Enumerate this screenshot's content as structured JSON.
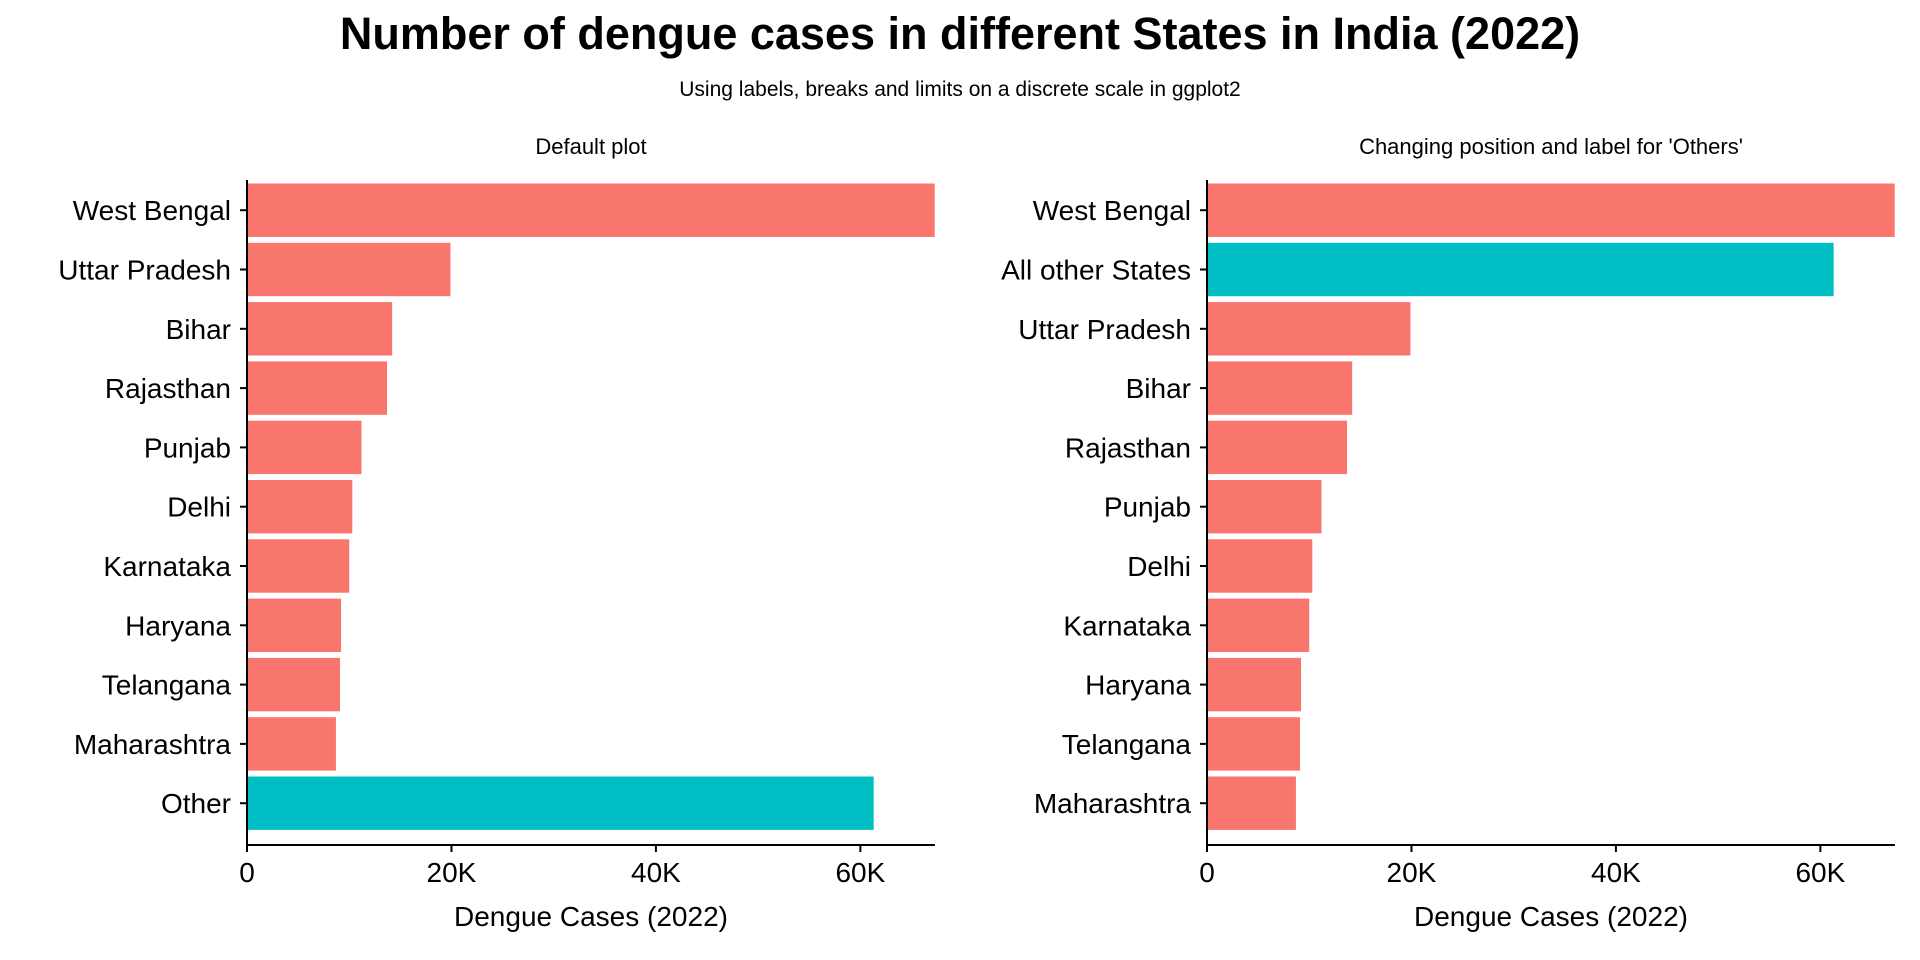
{
  "title": "Number of dengue cases in different States in India (2022)",
  "subtitle": "Using labels, breaks and limits on a discrete scale in ggplot2",
  "colors": {
    "state": "#F8766D",
    "other": "#00BFC4"
  },
  "chart_data": [
    {
      "type": "bar",
      "orientation": "horizontal",
      "title": "Default plot",
      "xlabel": "Dengue Cases (2022)",
      "ylabel": "",
      "xlim": [
        0,
        67300
      ],
      "xticks": [
        0,
        20000,
        40000,
        60000
      ],
      "xtick_labels": [
        "0",
        "20K",
        "40K",
        "60K"
      ],
      "categories": [
        "West Bengal",
        "Uttar Pradesh",
        "Bihar",
        "Rajasthan",
        "Punjab",
        "Delhi",
        "Karnataka",
        "Haryana",
        "Telangana",
        "Maharashtra",
        "Other"
      ],
      "values": [
        67271,
        19900,
        14200,
        13700,
        11200,
        10300,
        10000,
        9200,
        9100,
        8700,
        61300
      ],
      "bar_color_keys": [
        "state",
        "state",
        "state",
        "state",
        "state",
        "state",
        "state",
        "state",
        "state",
        "state",
        "other"
      ],
      "legend": "none",
      "grid": false
    },
    {
      "type": "bar",
      "orientation": "horizontal",
      "title": "Changing position and label for 'Others'",
      "xlabel": "Dengue Cases (2022)",
      "ylabel": "",
      "xlim": [
        0,
        67300
      ],
      "xticks": [
        0,
        20000,
        40000,
        60000
      ],
      "xtick_labels": [
        "0",
        "20K",
        "40K",
        "60K"
      ],
      "categories": [
        "West Bengal",
        "All other States",
        "Uttar Pradesh",
        "Bihar",
        "Rajasthan",
        "Punjab",
        "Delhi",
        "Karnataka",
        "Haryana",
        "Telangana",
        "Maharashtra"
      ],
      "values": [
        67271,
        61300,
        19900,
        14200,
        13700,
        11200,
        10300,
        10000,
        9200,
        9100,
        8700
      ],
      "bar_color_keys": [
        "state",
        "other",
        "state",
        "state",
        "state",
        "state",
        "state",
        "state",
        "state",
        "state",
        "state"
      ],
      "legend": "none",
      "grid": false
    }
  ]
}
